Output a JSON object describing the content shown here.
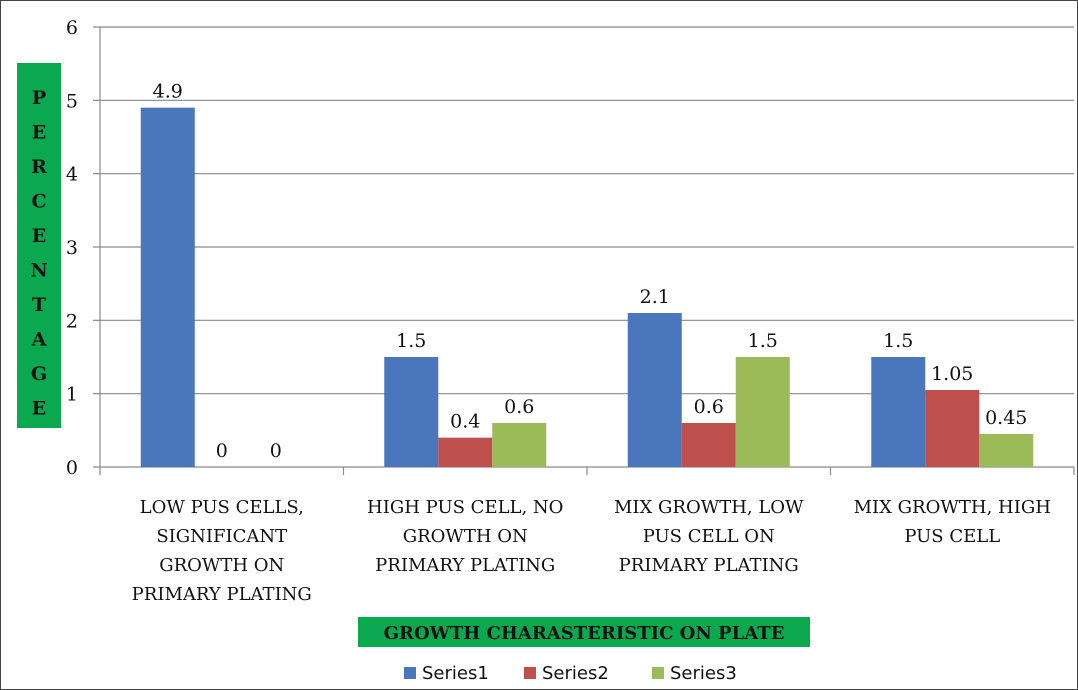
{
  "chart_data": {
    "type": "bar",
    "categories": [
      [
        "LOW PUS CELLS,",
        "SIGNIFICANT",
        "GROWTH  ON",
        "PRIMARY PLATING"
      ],
      [
        "HIGH PUS CELL, NO",
        "GROWTH  ON",
        "PRIMARY PLATING"
      ],
      [
        "MIX GROWTH,  LOW",
        "PUS CELL ON",
        "PRIMARY PLATING"
      ],
      [
        "MIX GROWTH,  HIGH",
        "PUS CELL"
      ]
    ],
    "series": [
      {
        "name": "Series1",
        "color": "#4a76bd",
        "values": [
          4.9,
          1.5,
          2.1,
          1.5
        ],
        "labels": [
          "4.9",
          "1.5",
          "2.1",
          "1.5"
        ]
      },
      {
        "name": "Series2",
        "color": "#c0504d",
        "values": [
          0,
          0.4,
          0.6,
          1.05
        ],
        "labels": [
          "0",
          "0.4",
          "0.6",
          "1.05"
        ]
      },
      {
        "name": "Series3",
        "color": "#9bbb59",
        "values": [
          0,
          0.6,
          1.5,
          0.45
        ],
        "labels": [
          "0",
          "0.6",
          "1.5",
          "0.45"
        ]
      }
    ],
    "ylabel": "PERCENTAGE",
    "xlabel": "GROWTH CHARASTERISTIC ON PLATE",
    "ylim": [
      0,
      6
    ],
    "yticks": [
      "0",
      "1",
      "2",
      "3",
      "4",
      "5",
      "6"
    ],
    "grid": true,
    "legend": "bottom"
  }
}
